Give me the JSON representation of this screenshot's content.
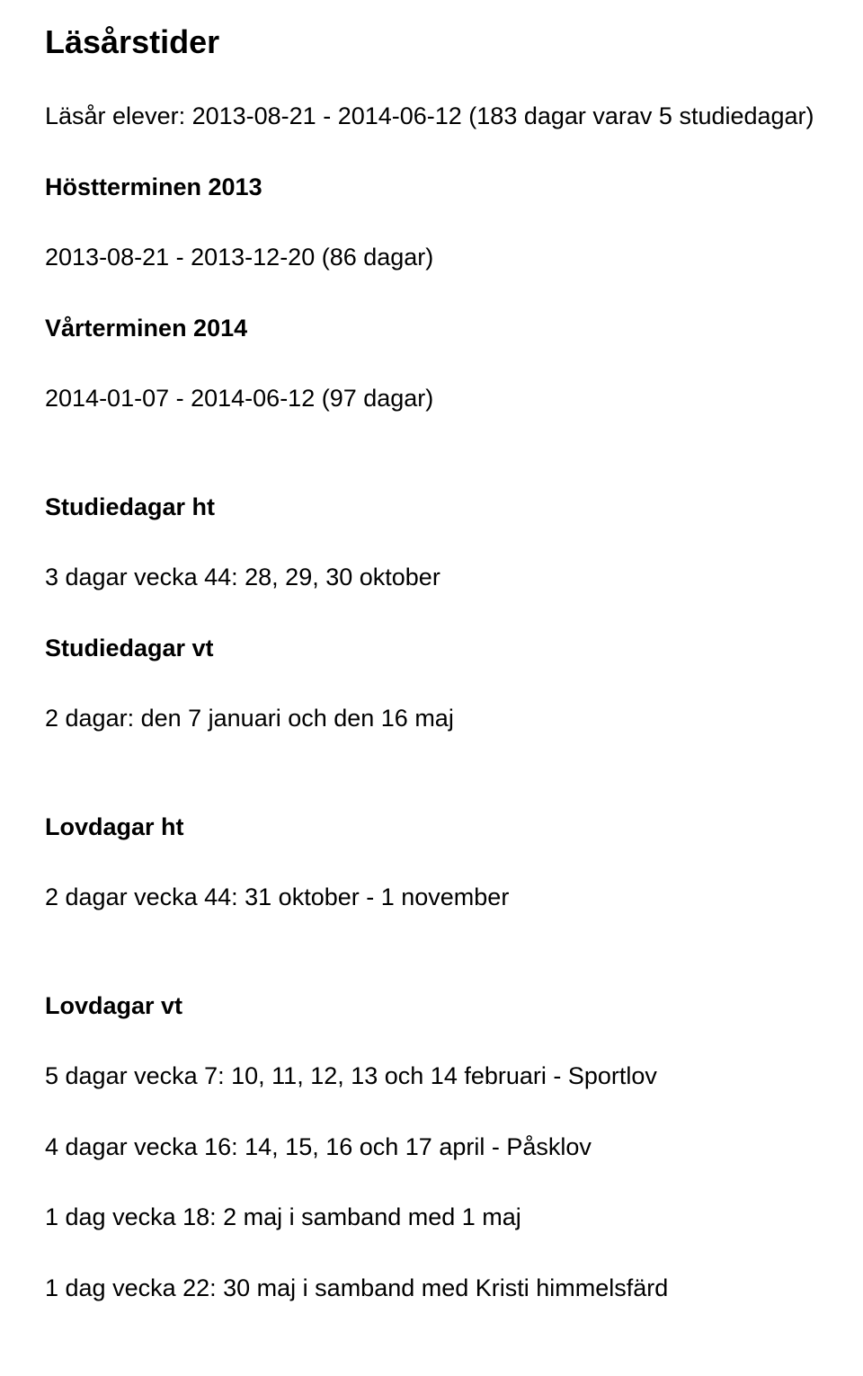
{
  "title": "Läsårstider",
  "intro": "Läsår elever: 2013-08-21 - 2014-06-12 (183 dagar varav 5 studiedagar)",
  "ht": {
    "heading": "Höstterminen 2013",
    "range": "2013-08-21 - 2013-12-20 (86 dagar)"
  },
  "vt": {
    "heading": "Vårterminen 2014",
    "range": "2014-01-07 - 2014-06-12 (97 dagar)"
  },
  "studiedagar_ht": {
    "heading": "Studiedagar ht",
    "text": "3 dagar vecka 44: 28, 29, 30 oktober"
  },
  "studiedagar_vt": {
    "heading": "Studiedagar vt",
    "text": "2 dagar: den 7 januari och den 16 maj"
  },
  "lovdagar_ht": {
    "heading": "Lovdagar ht",
    "text": "2 dagar vecka 44: 31 oktober - 1 november"
  },
  "lovdagar_vt": {
    "heading": "Lovdagar vt",
    "lines": [
      "5 dagar vecka 7: 10, 11, 12, 13 och 14 februari - Sportlov",
      "4 dagar vecka 16: 14, 15, 16 och 17 april - Påsklov",
      "1 dag vecka 18: 2 maj i samband med 1 maj",
      "1 dag vecka 22: 30 maj i samband med Kristi himmelsfärd"
    ]
  }
}
